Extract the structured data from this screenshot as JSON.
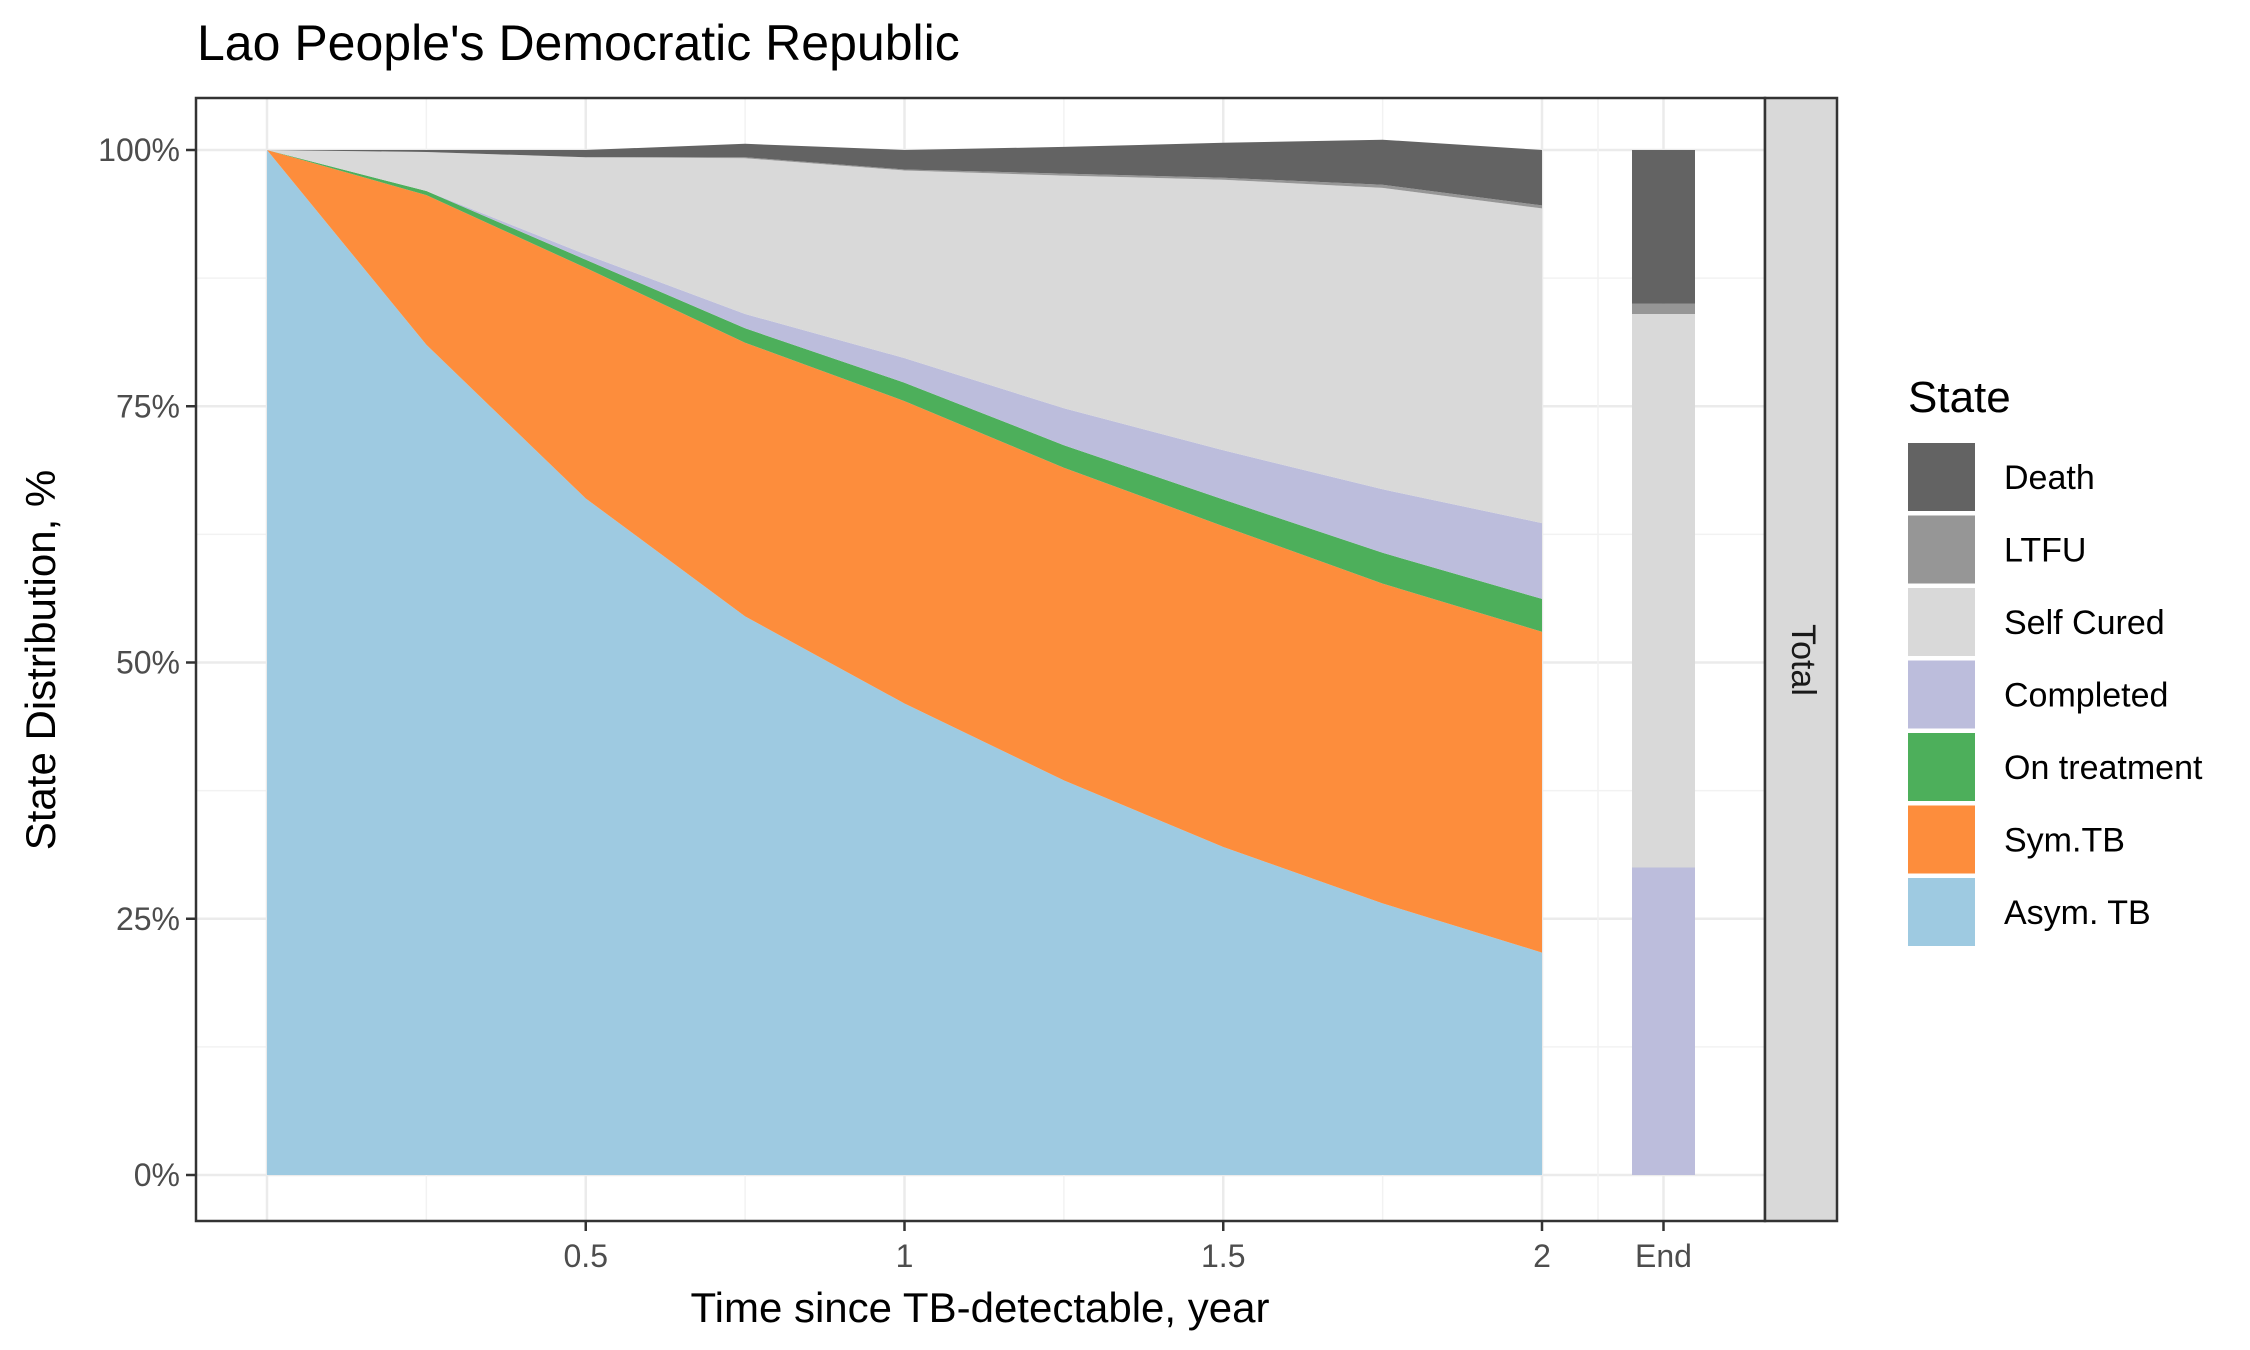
{
  "chart_data": {
    "type": "area",
    "title": "Lao People's Democratic Republic",
    "xlabel": "Time since TB-detectable, year",
    "ylabel": "State Distribution, %",
    "x_tick_labels": [
      "0.5",
      "1",
      "1.5",
      "2"
    ],
    "x_tick_values": [
      0.5,
      1,
      1.5,
      2
    ],
    "end_label": "End",
    "xlim": [
      0,
      2
    ],
    "ylim": [
      0,
      100
    ],
    "y_tick_labels": [
      "0%",
      "25%",
      "50%",
      "75%",
      "100%"
    ],
    "y_tick_values": [
      0,
      25,
      50,
      75,
      100
    ],
    "facet_label": "Total",
    "grid": true,
    "legend_position": "right",
    "legend_title": "State",
    "series": [
      {
        "name": "Asym. TB",
        "color": "#9ECAE1",
        "x": [
          0,
          0.25,
          0.5,
          0.75,
          1,
          1.25,
          1.5,
          1.75,
          2
        ],
        "values": [
          100,
          81,
          66,
          54.5,
          46,
          38.5,
          32,
          26.5,
          21.7
        ]
      },
      {
        "name": "Sym.TB",
        "color": "#FD8D3C",
        "x": [
          0,
          0.25,
          0.5,
          0.75,
          1,
          1.25,
          1.5,
          1.75,
          2
        ],
        "values": [
          0,
          14.6,
          22.5,
          26.7,
          29.5,
          30.5,
          31.3,
          31.2,
          31.3
        ]
      },
      {
        "name": "On treatment",
        "color": "#4DAF5B",
        "x": [
          0,
          0.25,
          0.5,
          0.75,
          1,
          1.25,
          1.5,
          1.75,
          2
        ],
        "values": [
          0,
          0.4,
          0.8,
          1.4,
          1.8,
          2.2,
          2.6,
          3.0,
          3.2
        ]
      },
      {
        "name": "Completed",
        "color": "#BCBDDC",
        "x": [
          0,
          0.25,
          0.5,
          0.75,
          1,
          1.25,
          1.5,
          1.75,
          2
        ],
        "values": [
          0,
          0,
          0.5,
          1.4,
          2.4,
          3.6,
          4.8,
          6.2,
          7.4
        ]
      },
      {
        "name": "Self Cured",
        "color": "#D9D9D9",
        "x": [
          0,
          0.25,
          0.5,
          0.75,
          1,
          1.25,
          1.5,
          1.75,
          2
        ],
        "values": [
          0,
          3.8,
          9.5,
          15.2,
          18.3,
          22.7,
          26.4,
          29.4,
          30.7
        ]
      },
      {
        "name": "LTFU",
        "color": "#969696",
        "x": [
          0,
          0.25,
          0.5,
          0.75,
          1,
          1.25,
          1.5,
          1.75,
          2
        ],
        "values": [
          0,
          0,
          0,
          0.1,
          0.1,
          0.2,
          0.2,
          0.3,
          0.3
        ]
      },
      {
        "name": "Death",
        "color": "#636363",
        "x": [
          0,
          0.25,
          0.5,
          0.75,
          1,
          1.25,
          1.5,
          1.75,
          2
        ],
        "values": [
          0,
          0.2,
          0.7,
          1.3,
          1.9,
          2.6,
          3.4,
          4.4,
          5.4
        ]
      }
    ],
    "end_bar": [
      {
        "name": "Completed",
        "value": 30
      },
      {
        "name": "Self Cured",
        "value": 54
      },
      {
        "name": "LTFU",
        "value": 1
      },
      {
        "name": "Death",
        "value": 15
      }
    ]
  }
}
